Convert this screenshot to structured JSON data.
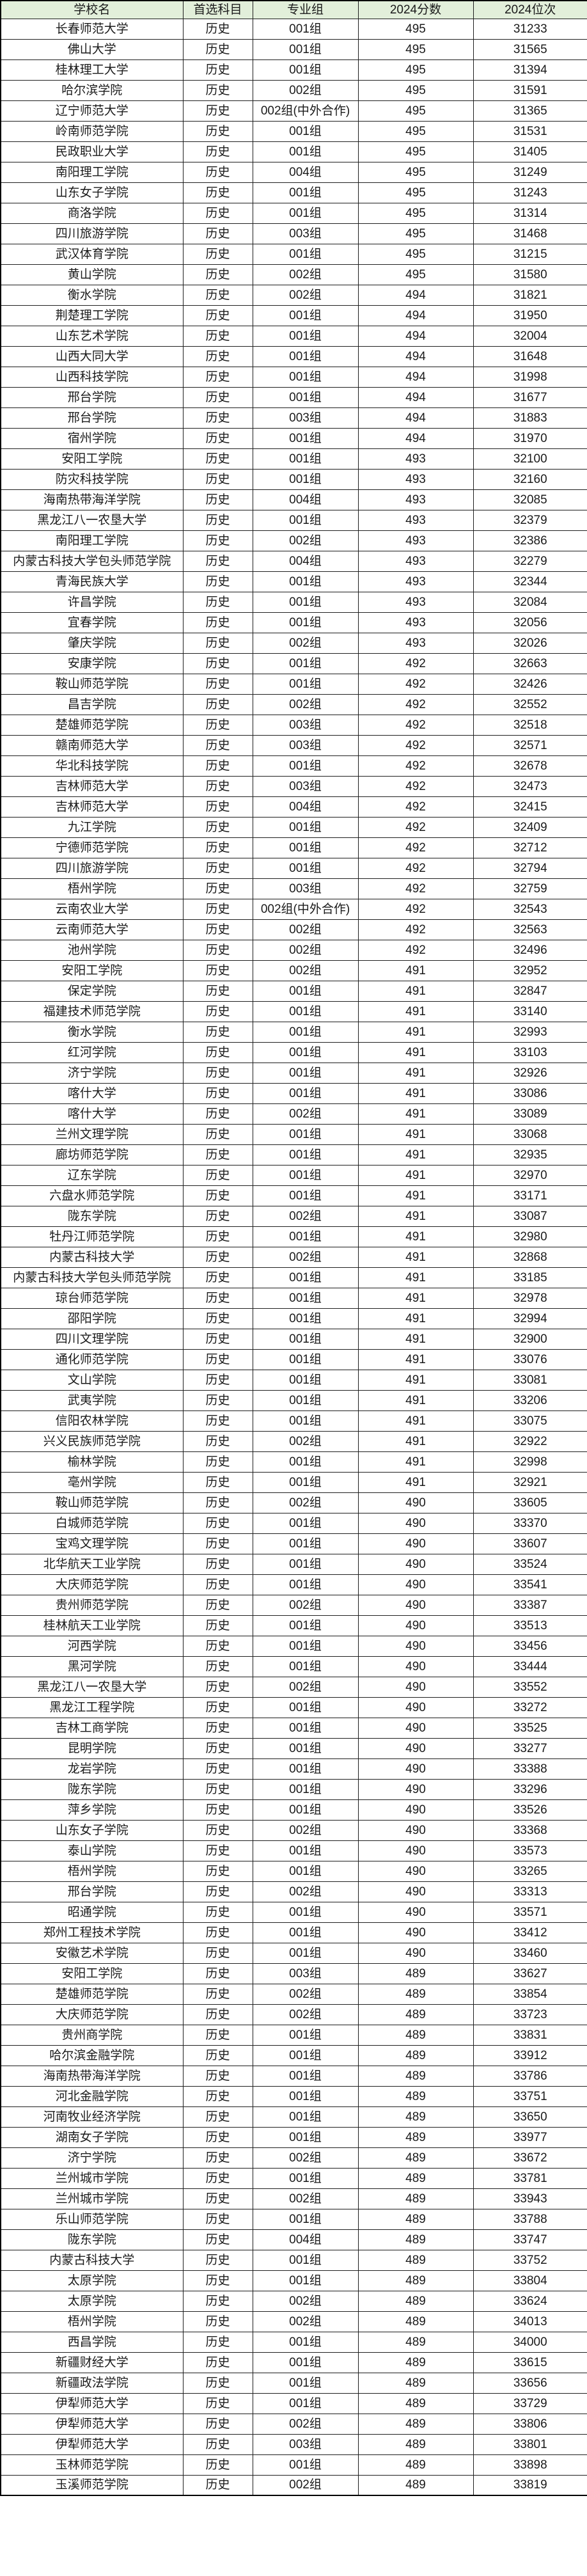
{
  "colors": {
    "header_bg": "#e2efda",
    "row_bg": "#ffffff",
    "grid_line": "#1f1f1f",
    "text": "#1a1a1a"
  },
  "chart_data": {
    "type": "table",
    "columns": [
      "学校名",
      "首选科目",
      "专业组",
      "2024分数",
      "2024位次"
    ],
    "rows": [
      [
        "长春师范大学",
        "历史",
        "001组",
        "495",
        "31233"
      ],
      [
        "佛山大学",
        "历史",
        "001组",
        "495",
        "31565"
      ],
      [
        "桂林理工大学",
        "历史",
        "001组",
        "495",
        "31394"
      ],
      [
        "哈尔滨学院",
        "历史",
        "002组",
        "495",
        "31591"
      ],
      [
        "辽宁师范大学",
        "历史",
        "002组(中外合作)",
        "495",
        "31365"
      ],
      [
        "岭南师范学院",
        "历史",
        "001组",
        "495",
        "31531"
      ],
      [
        "民政职业大学",
        "历史",
        "001组",
        "495",
        "31405"
      ],
      [
        "南阳理工学院",
        "历史",
        "004组",
        "495",
        "31249"
      ],
      [
        "山东女子学院",
        "历史",
        "001组",
        "495",
        "31243"
      ],
      [
        "商洛学院",
        "历史",
        "001组",
        "495",
        "31314"
      ],
      [
        "四川旅游学院",
        "历史",
        "003组",
        "495",
        "31468"
      ],
      [
        "武汉体育学院",
        "历史",
        "001组",
        "495",
        "31215"
      ],
      [
        "黄山学院",
        "历史",
        "002组",
        "495",
        "31580"
      ],
      [
        "衡水学院",
        "历史",
        "002组",
        "494",
        "31821"
      ],
      [
        "荆楚理工学院",
        "历史",
        "001组",
        "494",
        "31950"
      ],
      [
        "山东艺术学院",
        "历史",
        "001组",
        "494",
        "32004"
      ],
      [
        "山西大同大学",
        "历史",
        "001组",
        "494",
        "31648"
      ],
      [
        "山西科技学院",
        "历史",
        "001组",
        "494",
        "31998"
      ],
      [
        "邢台学院",
        "历史",
        "001组",
        "494",
        "31677"
      ],
      [
        "邢台学院",
        "历史",
        "003组",
        "494",
        "31883"
      ],
      [
        "宿州学院",
        "历史",
        "001组",
        "494",
        "31970"
      ],
      [
        "安阳工学院",
        "历史",
        "001组",
        "493",
        "32100"
      ],
      [
        "防灾科技学院",
        "历史",
        "001组",
        "493",
        "32160"
      ],
      [
        "海南热带海洋学院",
        "历史",
        "004组",
        "493",
        "32085"
      ],
      [
        "黑龙江八一农垦大学",
        "历史",
        "001组",
        "493",
        "32379"
      ],
      [
        "南阳理工学院",
        "历史",
        "002组",
        "493",
        "32386"
      ],
      [
        "内蒙古科技大学包头师范学院",
        "历史",
        "004组",
        "493",
        "32279"
      ],
      [
        "青海民族大学",
        "历史",
        "001组",
        "493",
        "32344"
      ],
      [
        "许昌学院",
        "历史",
        "001组",
        "493",
        "32084"
      ],
      [
        "宜春学院",
        "历史",
        "001组",
        "493",
        "32056"
      ],
      [
        "肇庆学院",
        "历史",
        "002组",
        "493",
        "32026"
      ],
      [
        "安康学院",
        "历史",
        "001组",
        "492",
        "32663"
      ],
      [
        "鞍山师范学院",
        "历史",
        "001组",
        "492",
        "32426"
      ],
      [
        "昌吉学院",
        "历史",
        "002组",
        "492",
        "32552"
      ],
      [
        "楚雄师范学院",
        "历史",
        "003组",
        "492",
        "32518"
      ],
      [
        "赣南师范大学",
        "历史",
        "003组",
        "492",
        "32571"
      ],
      [
        "华北科技学院",
        "历史",
        "001组",
        "492",
        "32678"
      ],
      [
        "吉林师范大学",
        "历史",
        "003组",
        "492",
        "32473"
      ],
      [
        "吉林师范大学",
        "历史",
        "004组",
        "492",
        "32415"
      ],
      [
        "九江学院",
        "历史",
        "001组",
        "492",
        "32409"
      ],
      [
        "宁德师范学院",
        "历史",
        "001组",
        "492",
        "32712"
      ],
      [
        "四川旅游学院",
        "历史",
        "001组",
        "492",
        "32794"
      ],
      [
        "梧州学院",
        "历史",
        "003组",
        "492",
        "32759"
      ],
      [
        "云南农业大学",
        "历史",
        "002组(中外合作)",
        "492",
        "32543"
      ],
      [
        "云南师范大学",
        "历史",
        "002组",
        "492",
        "32563"
      ],
      [
        "池州学院",
        "历史",
        "002组",
        "492",
        "32496"
      ],
      [
        "安阳工学院",
        "历史",
        "002组",
        "491",
        "32952"
      ],
      [
        "保定学院",
        "历史",
        "001组",
        "491",
        "32847"
      ],
      [
        "福建技术师范学院",
        "历史",
        "001组",
        "491",
        "33140"
      ],
      [
        "衡水学院",
        "历史",
        "001组",
        "491",
        "32993"
      ],
      [
        "红河学院",
        "历史",
        "001组",
        "491",
        "33103"
      ],
      [
        "济宁学院",
        "历史",
        "001组",
        "491",
        "32926"
      ],
      [
        "喀什大学",
        "历史",
        "001组",
        "491",
        "33086"
      ],
      [
        "喀什大学",
        "历史",
        "002组",
        "491",
        "33089"
      ],
      [
        "兰州文理学院",
        "历史",
        "001组",
        "491",
        "33068"
      ],
      [
        "廊坊师范学院",
        "历史",
        "001组",
        "491",
        "32935"
      ],
      [
        "辽东学院",
        "历史",
        "001组",
        "491",
        "32970"
      ],
      [
        "六盘水师范学院",
        "历史",
        "001组",
        "491",
        "33171"
      ],
      [
        "陇东学院",
        "历史",
        "002组",
        "491",
        "33087"
      ],
      [
        "牡丹江师范学院",
        "历史",
        "001组",
        "491",
        "32980"
      ],
      [
        "内蒙古科技大学",
        "历史",
        "002组",
        "491",
        "32868"
      ],
      [
        "内蒙古科技大学包头师范学院",
        "历史",
        "001组",
        "491",
        "33185"
      ],
      [
        "琼台师范学院",
        "历史",
        "001组",
        "491",
        "32978"
      ],
      [
        "邵阳学院",
        "历史",
        "001组",
        "491",
        "32994"
      ],
      [
        "四川文理学院",
        "历史",
        "001组",
        "491",
        "32900"
      ],
      [
        "通化师范学院",
        "历史",
        "001组",
        "491",
        "33076"
      ],
      [
        "文山学院",
        "历史",
        "001组",
        "491",
        "33081"
      ],
      [
        "武夷学院",
        "历史",
        "001组",
        "491",
        "33206"
      ],
      [
        "信阳农林学院",
        "历史",
        "001组",
        "491",
        "33075"
      ],
      [
        "兴义民族师范学院",
        "历史",
        "002组",
        "491",
        "32922"
      ],
      [
        "榆林学院",
        "历史",
        "001组",
        "491",
        "32998"
      ],
      [
        "亳州学院",
        "历史",
        "001组",
        "491",
        "32921"
      ],
      [
        "鞍山师范学院",
        "历史",
        "002组",
        "490",
        "33605"
      ],
      [
        "白城师范学院",
        "历史",
        "001组",
        "490",
        "33370"
      ],
      [
        "宝鸡文理学院",
        "历史",
        "001组",
        "490",
        "33607"
      ],
      [
        "北华航天工业学院",
        "历史",
        "001组",
        "490",
        "33524"
      ],
      [
        "大庆师范学院",
        "历史",
        "001组",
        "490",
        "33541"
      ],
      [
        "贵州师范学院",
        "历史",
        "002组",
        "490",
        "33387"
      ],
      [
        "桂林航天工业学院",
        "历史",
        "001组",
        "490",
        "33513"
      ],
      [
        "河西学院",
        "历史",
        "001组",
        "490",
        "33456"
      ],
      [
        "黑河学院",
        "历史",
        "001组",
        "490",
        "33444"
      ],
      [
        "黑龙江八一农垦大学",
        "历史",
        "002组",
        "490",
        "33552"
      ],
      [
        "黑龙江工程学院",
        "历史",
        "001组",
        "490",
        "33272"
      ],
      [
        "吉林工商学院",
        "历史",
        "001组",
        "490",
        "33525"
      ],
      [
        "昆明学院",
        "历史",
        "001组",
        "490",
        "33277"
      ],
      [
        "龙岩学院",
        "历史",
        "001组",
        "490",
        "33388"
      ],
      [
        "陇东学院",
        "历史",
        "001组",
        "490",
        "33296"
      ],
      [
        "萍乡学院",
        "历史",
        "001组",
        "490",
        "33526"
      ],
      [
        "山东女子学院",
        "历史",
        "002组",
        "490",
        "33368"
      ],
      [
        "泰山学院",
        "历史",
        "001组",
        "490",
        "33573"
      ],
      [
        "梧州学院",
        "历史",
        "001组",
        "490",
        "33265"
      ],
      [
        "邢台学院",
        "历史",
        "002组",
        "490",
        "33313"
      ],
      [
        "昭通学院",
        "历史",
        "001组",
        "490",
        "33571"
      ],
      [
        "郑州工程技术学院",
        "历史",
        "001组",
        "490",
        "33412"
      ],
      [
        "安徽艺术学院",
        "历史",
        "001组",
        "490",
        "33460"
      ],
      [
        "安阳工学院",
        "历史",
        "003组",
        "489",
        "33627"
      ],
      [
        "楚雄师范学院",
        "历史",
        "002组",
        "489",
        "33854"
      ],
      [
        "大庆师范学院",
        "历史",
        "002组",
        "489",
        "33723"
      ],
      [
        "贵州商学院",
        "历史",
        "001组",
        "489",
        "33831"
      ],
      [
        "哈尔滨金融学院",
        "历史",
        "001组",
        "489",
        "33912"
      ],
      [
        "海南热带海洋学院",
        "历史",
        "001组",
        "489",
        "33786"
      ],
      [
        "河北金融学院",
        "历史",
        "001组",
        "489",
        "33751"
      ],
      [
        "河南牧业经济学院",
        "历史",
        "001组",
        "489",
        "33650"
      ],
      [
        "湖南女子学院",
        "历史",
        "001组",
        "489",
        "33977"
      ],
      [
        "济宁学院",
        "历史",
        "002组",
        "489",
        "33672"
      ],
      [
        "兰州城市学院",
        "历史",
        "001组",
        "489",
        "33781"
      ],
      [
        "兰州城市学院",
        "历史",
        "002组",
        "489",
        "33943"
      ],
      [
        "乐山师范学院",
        "历史",
        "001组",
        "489",
        "33788"
      ],
      [
        "陇东学院",
        "历史",
        "004组",
        "489",
        "33747"
      ],
      [
        "内蒙古科技大学",
        "历史",
        "001组",
        "489",
        "33752"
      ],
      [
        "太原学院",
        "历史",
        "001组",
        "489",
        "33804"
      ],
      [
        "太原学院",
        "历史",
        "002组",
        "489",
        "33624"
      ],
      [
        "梧州学院",
        "历史",
        "002组",
        "489",
        "34013"
      ],
      [
        "西昌学院",
        "历史",
        "001组",
        "489",
        "34000"
      ],
      [
        "新疆财经大学",
        "历史",
        "001组",
        "489",
        "33615"
      ],
      [
        "新疆政法学院",
        "历史",
        "001组",
        "489",
        "33656"
      ],
      [
        "伊犁师范大学",
        "历史",
        "001组",
        "489",
        "33729"
      ],
      [
        "伊犁师范大学",
        "历史",
        "002组",
        "489",
        "33806"
      ],
      [
        "伊犁师范大学",
        "历史",
        "003组",
        "489",
        "33801"
      ],
      [
        "玉林师范学院",
        "历史",
        "001组",
        "489",
        "33898"
      ],
      [
        "玉溪师范学院",
        "历史",
        "002组",
        "489",
        "33819"
      ]
    ]
  }
}
